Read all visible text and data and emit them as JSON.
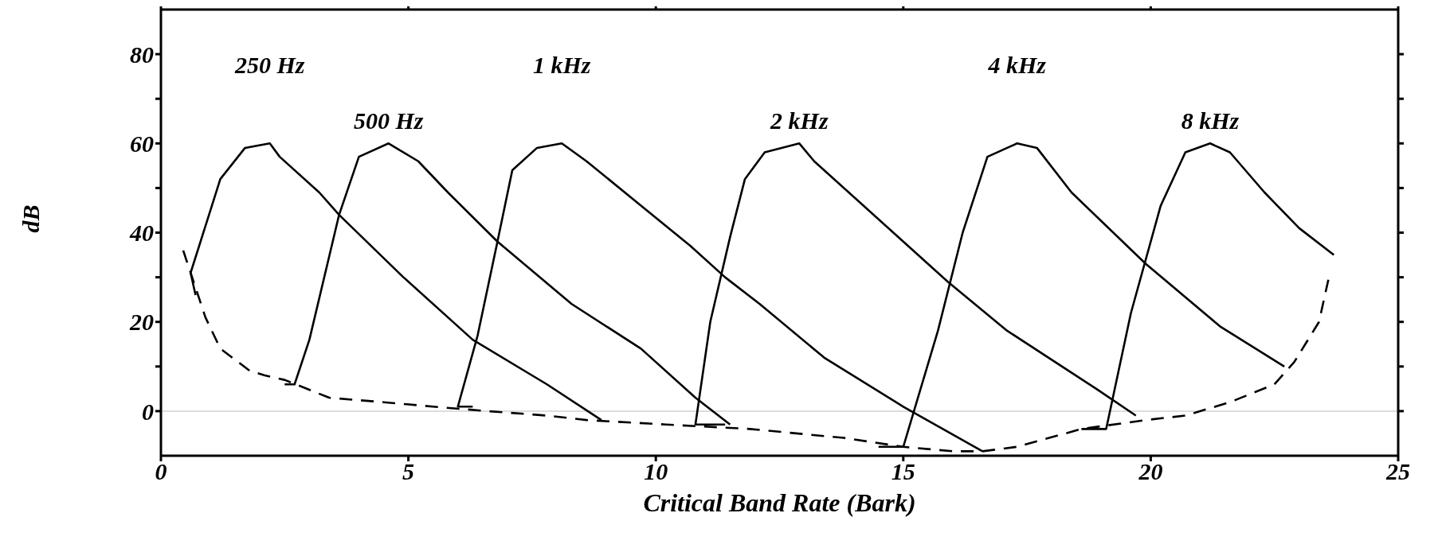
{
  "chart_data": {
    "type": "line",
    "xlabel": "Critical Band Rate (Bark)",
    "ylabel": "dB",
    "xlim": [
      0,
      25
    ],
    "xticks": [
      0,
      5,
      10,
      15,
      20,
      25
    ],
    "ylim": [
      -10,
      90
    ],
    "yticks": [
      0,
      {
        "value": 10,
        "label": null
      },
      20,
      {
        "value": 30,
        "label": null
      },
      40,
      {
        "value": 50,
        "label": null
      },
      60,
      {
        "value": 70,
        "label": null
      },
      80
    ],
    "marker": "none",
    "line_style": "solid",
    "ref_lines": [
      {
        "axis": "y",
        "value": 0,
        "color": "#dddddd"
      }
    ],
    "series": [
      {
        "name": "250 Hz",
        "color": "#000000",
        "x": [
          0.7,
          0.6,
          1.2,
          1.7,
          2.2,
          2.4,
          3.2,
          3.6,
          4.9,
          6.3,
          7.8,
          8.9
        ],
        "values": [
          26,
          31,
          52,
          59,
          60,
          57,
          49,
          44,
          30,
          16,
          6,
          -2
        ]
      },
      {
        "name": "500 Hz",
        "color": "#000000",
        "x": [
          2.5,
          2.7,
          3.0,
          3.6,
          4.0,
          4.6,
          5.2,
          5.8,
          6.8,
          8.3,
          9.7,
          10.8,
          11.5
        ],
        "values": [
          6,
          6,
          16,
          44,
          57,
          60,
          56,
          49,
          38,
          24,
          14,
          3,
          -3
        ]
      },
      {
        "name": "1 kHz",
        "color": "#000000",
        "x": [
          6.3,
          6.0,
          6.4,
          6.8,
          7.1,
          7.6,
          8.1,
          8.6,
          10.7,
          11.4,
          12.1,
          13.4,
          15.0,
          16.6
        ],
        "values": [
          1,
          1,
          17,
          38,
          54,
          59,
          60,
          56,
          37,
          30,
          24,
          12,
          1,
          -9
        ]
      },
      {
        "name": "2 kHz",
        "color": "#000000",
        "x": [
          11.4,
          10.8,
          11.1,
          11.5,
          11.8,
          12.2,
          12.9,
          13.2,
          15.0,
          15.9,
          17.1,
          18.9,
          19.7
        ],
        "values": [
          -3,
          -3,
          20,
          39,
          52,
          58,
          60,
          56,
          38,
          29,
          18,
          5,
          -1
        ]
      },
      {
        "name": "4 kHz",
        "color": "#000000",
        "x": [
          14.5,
          15.0,
          15.7,
          16.2,
          16.7,
          17.3,
          17.7,
          18.4,
          19.9,
          21.4,
          22.7
        ],
        "values": [
          -8,
          -8,
          18,
          40,
          57,
          60,
          59,
          49,
          33,
          19,
          10
        ]
      },
      {
        "name": "8 kHz",
        "color": "#000000",
        "x": [
          18.6,
          19.1,
          19.6,
          20.2,
          20.7,
          21.2,
          21.6,
          22.3,
          23.0,
          23.7
        ],
        "values": [
          -4,
          -4,
          22,
          46,
          58,
          60,
          58,
          49,
          41,
          35
        ]
      },
      {
        "color": "#000000",
        "line_style": "dashed",
        "x": [
          0.45,
          0.9,
          1.2,
          1.8,
          2.1,
          2.5,
          3.4,
          4.5,
          5.5,
          6.6,
          7.8,
          8.6,
          10.2,
          11.9,
          13.8,
          15.0,
          16.0,
          16.6,
          17.3,
          18.6,
          19.9,
          20.7,
          21.6,
          22.5,
          22.9,
          23.4,
          23.6
        ],
        "values": [
          36,
          21,
          14,
          9,
          8,
          7,
          3,
          2,
          1,
          0,
          -1,
          -2,
          -3,
          -4,
          -6,
          -8,
          -9,
          -9,
          -8,
          -4,
          -2,
          -1,
          2,
          6,
          11,
          20,
          30
        ]
      }
    ]
  }
}
